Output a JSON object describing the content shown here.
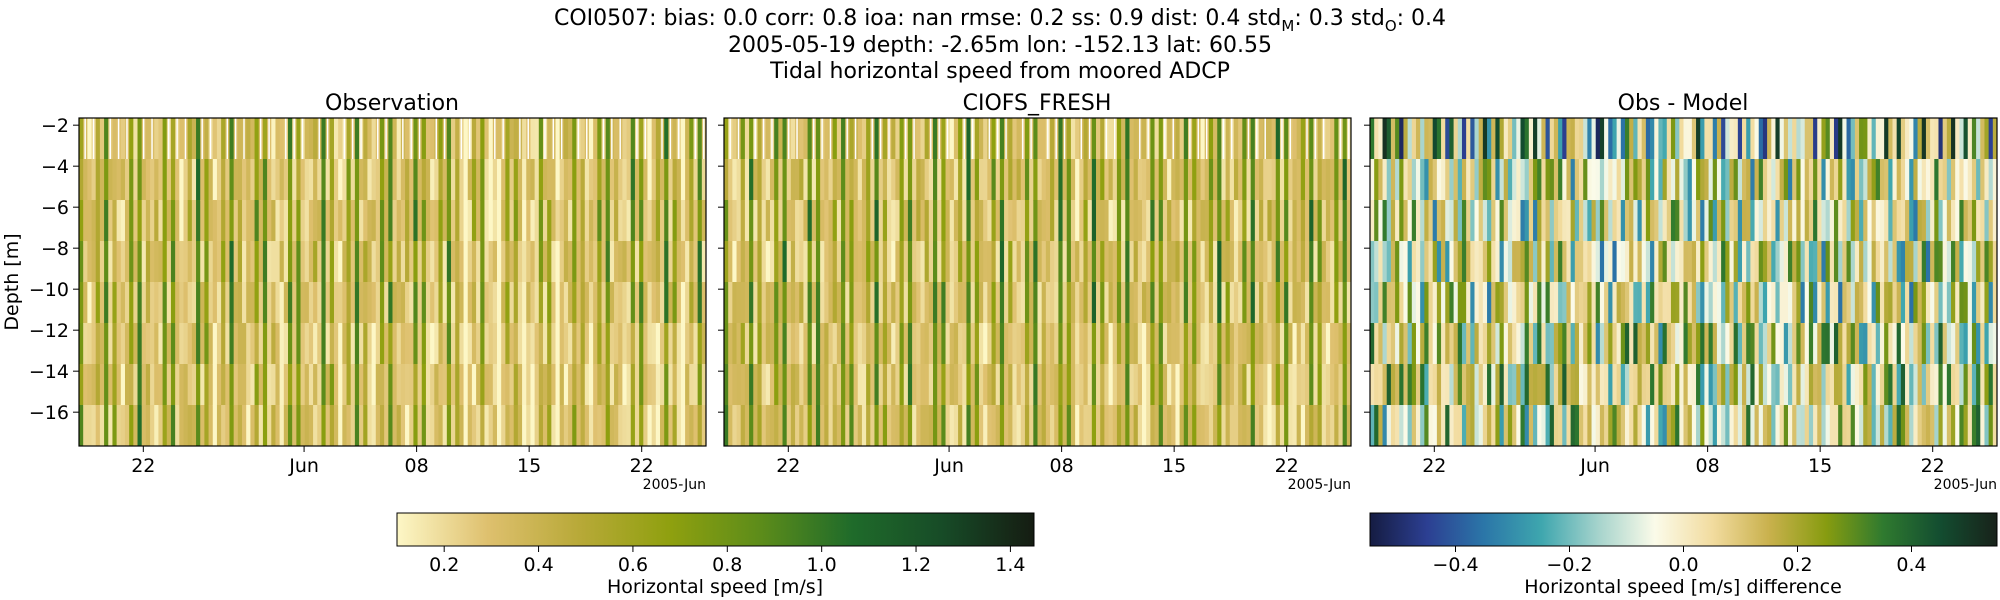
{
  "figure": {
    "title_line1_prefix": "COI0507: bias: 0.0  corr: 0.8  ioa: nan  rmse: 0.2  ss: 0.9  dist: 0.4  std",
    "title_std_m_sub": "M",
    "title_std_m_value": ": 0.3  std",
    "title_std_o_sub": "O",
    "title_std_o_value": ": 0.4",
    "title_line2": "2005-05-19 depth: -2.65m lon: -152.13 lat: 60.55",
    "title_line3": "Tidal horizontal speed from moored ADCP"
  },
  "chart_data": [
    {
      "type": "heatmap",
      "title": "Observation",
      "xlabel": "",
      "ylabel": "Depth [m]",
      "x_range": [
        "2005-05-18",
        "2005-06-26"
      ],
      "ylim": [
        -17.65,
        -1.65
      ],
      "x_tick_labels": [
        "22",
        "Jun",
        "08",
        "15",
        "22"
      ],
      "x_offset_label": "2005-Jun",
      "y_ticks": [
        -2,
        -4,
        -6,
        -8,
        -10,
        -12,
        -14,
        -16
      ],
      "value_range": [
        0.1,
        1.45
      ],
      "colormap": "speed"
    },
    {
      "type": "heatmap",
      "title": "CIOFS_FRESH",
      "xlabel": "",
      "ylabel": "",
      "x_range": [
        "2005-05-18",
        "2005-06-26"
      ],
      "ylim": [
        -17.65,
        -1.65
      ],
      "x_tick_labels": [
        "22",
        "Jun",
        "08",
        "15",
        "22"
      ],
      "x_offset_label": "2005-Jun",
      "y_ticks": [
        -2,
        -4,
        -6,
        -8,
        -10,
        -12,
        -14,
        -16
      ],
      "value_range": [
        0.1,
        1.45
      ],
      "colormap": "speed"
    },
    {
      "type": "heatmap",
      "title": "Obs - Model",
      "xlabel": "",
      "ylabel": "",
      "x_range": [
        "2005-05-18",
        "2005-06-26"
      ],
      "ylim": [
        -17.65,
        -1.65
      ],
      "x_tick_labels": [
        "22",
        "Jun",
        "08",
        "15",
        "22"
      ],
      "x_offset_label": "2005-Jun",
      "y_ticks": [
        -2,
        -4,
        -6,
        -8,
        -10,
        -12,
        -14,
        -16
      ],
      "value_range": [
        -0.55,
        0.55
      ],
      "colormap": "delta"
    }
  ],
  "colorbars": [
    {
      "label": "Horizontal speed [m/s]",
      "range": [
        0.1,
        1.45
      ],
      "ticks": [
        0.2,
        0.4,
        0.6,
        0.8,
        1.0,
        1.2,
        1.4
      ],
      "tick_labels": [
        "0.2",
        "0.4",
        "0.6",
        "0.8",
        "1.0",
        "1.2",
        "1.4"
      ],
      "colors": [
        "#fdf7c6",
        "#dec06e",
        "#b8a938",
        "#8fa00f",
        "#5c8c1a",
        "#1f6b2a",
        "#174b27",
        "#151c12"
      ]
    },
    {
      "label": "Horizontal speed [m/s] difference",
      "range": [
        -0.55,
        0.55
      ],
      "ticks": [
        -0.4,
        -0.2,
        0.0,
        0.2,
        0.4
      ],
      "tick_labels": [
        "−0.4",
        "−0.2",
        "0.0",
        "0.2",
        "0.4"
      ],
      "colors": [
        "#151c42",
        "#2c3f92",
        "#2b76a8",
        "#3ea6ae",
        "#a5d3cc",
        "#fbfbe9",
        "#f2dca0",
        "#c9b14d",
        "#879c10",
        "#2f7a2f",
        "#134d30",
        "#18221a"
      ]
    }
  ]
}
